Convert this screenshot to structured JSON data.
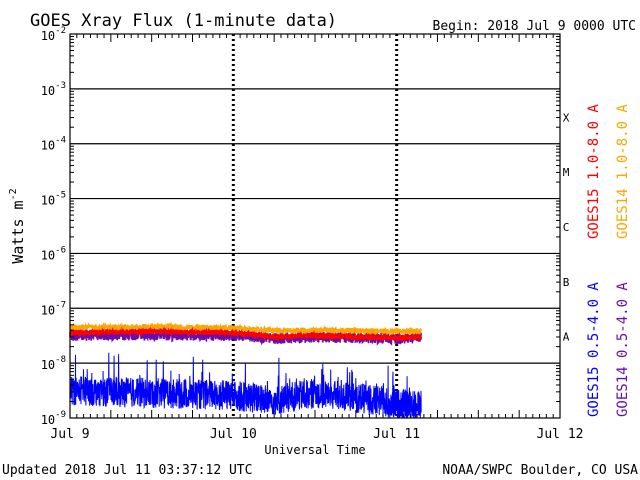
{
  "chart_data": {
    "type": "line",
    "title": "GOES Xray Flux (1-minute data)",
    "begin_label": "Begin:  2018 Jul 9 0000 UTC",
    "ylabel": "Watts m",
    "ylabel_sup": "-2",
    "xlabel": "Universal Time",
    "y_scale": "log",
    "ylim": [
      1e-09,
      0.01
    ],
    "y_ticks": [
      {
        "mantissa": "10",
        "exp": "-9"
      },
      {
        "mantissa": "10",
        "exp": "-8"
      },
      {
        "mantissa": "10",
        "exp": "-7"
      },
      {
        "mantissa": "10",
        "exp": "-6"
      },
      {
        "mantissa": "10",
        "exp": "-5"
      },
      {
        "mantissa": "10",
        "exp": "-4"
      },
      {
        "mantissa": "10",
        "exp": "-3"
      },
      {
        "mantissa": "10",
        "exp": "-2"
      }
    ],
    "x_range_days": [
      "Jul 9",
      "Jul 12"
    ],
    "x_ticks": [
      "Jul 9",
      "Jul 10",
      "Jul 11",
      "Jul 12"
    ],
    "flare_classes": [
      "A",
      "B",
      "C",
      "M",
      "X"
    ],
    "grid": true,
    "legend_placement": "right-outside",
    "series": [
      {
        "name": "GOES15 1.0-8.0 A",
        "color": "#ff0000",
        "band": "long",
        "x": [
          "Jul 9 00:00",
          "Jul 9 12:00",
          "Jul 10 00:00",
          "Jul 10 06:00",
          "Jul 10 12:00",
          "Jul 10 18:00",
          "Jul 11 00:00",
          "Jul 11 03:37"
        ],
        "values": [
          3.6e-08,
          3.8e-08,
          3.6e-08,
          3e-08,
          3.2e-08,
          3e-08,
          2.9e-08,
          3e-08
        ]
      },
      {
        "name": "GOES14 1.0-8.0 A",
        "color": "#ffa500",
        "band": "long",
        "x": [
          "Jul 9 00:00",
          "Jul 9 12:00",
          "Jul 10 00:00",
          "Jul 10 06:00",
          "Jul 10 12:00",
          "Jul 10 18:00",
          "Jul 11 00:00",
          "Jul 11 03:37"
        ],
        "values": [
          4.5e-08,
          4.6e-08,
          4.4e-08,
          3.9e-08,
          4e-08,
          3.9e-08,
          3.8e-08,
          3.9e-08
        ]
      },
      {
        "name": "GOES15 0.5-4.0 A",
        "color": "#0000ff",
        "band": "short",
        "x": [
          "Jul 9 00:00",
          "Jul 9 12:00",
          "Jul 10 00:00",
          "Jul 10 06:00",
          "Jul 10 12:00",
          "Jul 10 18:00",
          "Jul 11 00:00",
          "Jul 11 03:37"
        ],
        "values": [
          2.5e-09,
          2.2e-09,
          2e-09,
          1.6e-09,
          2.2e-09,
          1.8e-09,
          1.4e-09,
          1.3e-09
        ]
      },
      {
        "name": "GOES14 0.5-4.0 A",
        "color": "#6a0dad",
        "band": "short",
        "x": [
          "Jul 9 00:00",
          "Jul 9 12:00",
          "Jul 10 00:00",
          "Jul 10 06:00",
          "Jul 10 12:00",
          "Jul 10 18:00",
          "Jul 11 00:00",
          "Jul 11 03:37"
        ],
        "values": [
          3.2e-08,
          3.3e-08,
          3.2e-08,
          2.8e-08,
          3e-08,
          2.9e-08,
          2.8e-08,
          2.9e-08
        ]
      }
    ]
  },
  "footer": {
    "updated": "Updated 2018 Jul 11 03:37:12 UTC",
    "credit": "NOAA/SWPC Boulder, CO USA"
  },
  "colors": {
    "background": "#ffffff",
    "axis": "#000000"
  }
}
